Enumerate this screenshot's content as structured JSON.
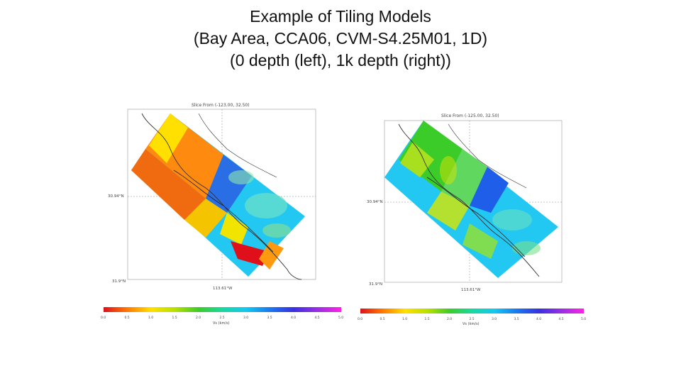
{
  "slide": {
    "title_lines": [
      "Example of Tiling Models",
      "(Bay Area, CCA06, CVM-S4.25M01, 1D)",
      "(0 depth (left), 1k depth (right))"
    ]
  },
  "left_plot": {
    "header": "Slice From (-123.00, 32.50)",
    "lat_label_mid": "30.94°N",
    "lat_label_bottom": "31.9°N",
    "lon_label_bottom": "113.61°W",
    "colorbar_ticks": [
      "0.0",
      "0.5",
      "1.0",
      "1.5",
      "2.0",
      "2.5",
      "3.0",
      "3.5",
      "4.0",
      "4.5",
      "5.0"
    ],
    "colorbar_label": "Vs (km/s)"
  },
  "right_plot": {
    "header": "Slice From (-125.00, 32.50)",
    "lat_label_mid": "30.94°N",
    "lat_label_bottom": "31.9°N",
    "lon_label_bottom": "113.61°W",
    "colorbar_ticks": [
      "0.0",
      "0.5",
      "1.0",
      "1.5",
      "2.0",
      "2.5",
      "3.0",
      "3.5",
      "4.0",
      "4.5",
      "5.0"
    ],
    "colorbar_label": "Vs (km/s)"
  },
  "colors": {
    "colormap": [
      "#e0101a",
      "#ff7a00",
      "#ffe000",
      "#b8e000",
      "#3ccc2a",
      "#19d8a0",
      "#14c8f0",
      "#1a78f0",
      "#3a30e0",
      "#9a2ee6",
      "#ff22e6"
    ]
  }
}
